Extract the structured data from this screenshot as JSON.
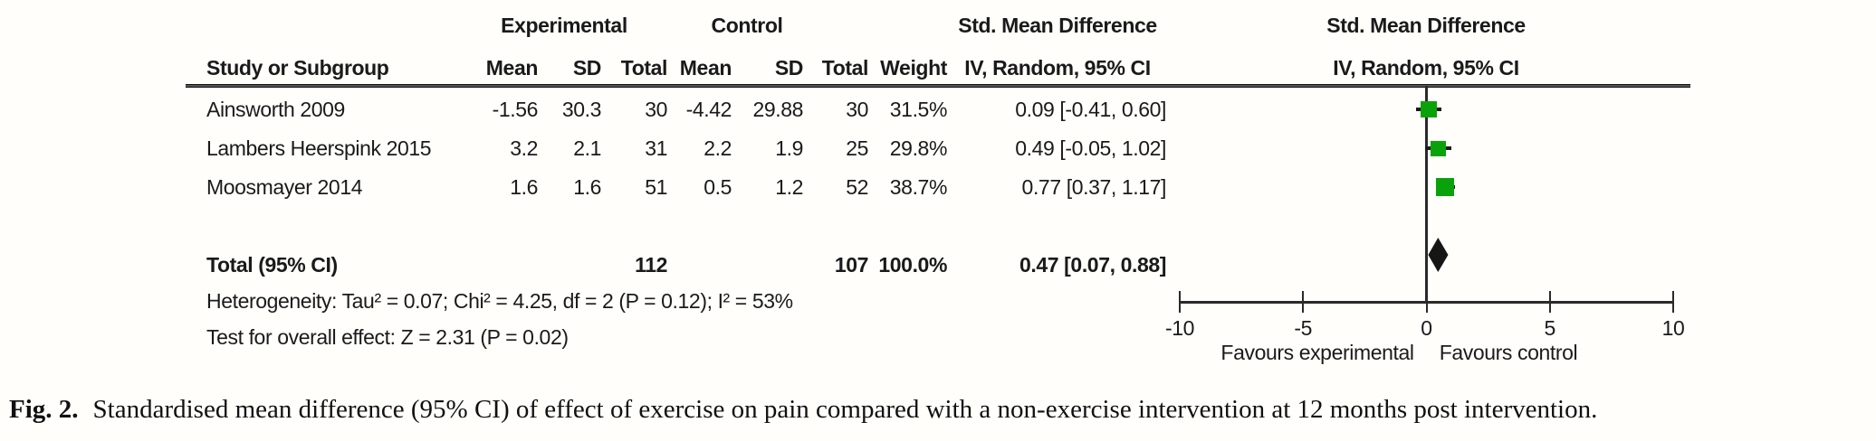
{
  "plot": {
    "group_headers": {
      "experimental": "Experimental",
      "control": "Control",
      "effect_column": "Std. Mean Difference",
      "plot_column": "Std. Mean Difference"
    },
    "column_headers": {
      "study": "Study or Subgroup",
      "exp_mean": "Mean",
      "exp_sd": "SD",
      "exp_total": "Total",
      "ctrl_mean": "Mean",
      "ctrl_sd": "SD",
      "ctrl_total": "Total",
      "weight": "Weight",
      "effect_ci": "IV, Random, 95% CI",
      "plot_ci": "IV, Random, 95% CI"
    },
    "studies": [
      {
        "name": "Ainsworth 2009",
        "exp_mean": "-1.56",
        "exp_sd": "30.3",
        "exp_total": "30",
        "ctrl_mean": "-4.42",
        "ctrl_sd": "29.88",
        "ctrl_total": "30",
        "weight": "31.5%",
        "effect": "0.09 [-0.41, 0.60]"
      },
      {
        "name": "Lambers Heerspink 2015",
        "exp_mean": "3.2",
        "exp_sd": "2.1",
        "exp_total": "31",
        "ctrl_mean": "2.2",
        "ctrl_sd": "1.9",
        "ctrl_total": "25",
        "weight": "29.8%",
        "effect": "0.49 [-0.05, 1.02]"
      },
      {
        "name": "Moosmayer 2014",
        "exp_mean": "1.6",
        "exp_sd": "1.6",
        "exp_total": "51",
        "ctrl_mean": "0.5",
        "ctrl_sd": "1.2",
        "ctrl_total": "52",
        "weight": "38.7%",
        "effect": "0.77 [0.37, 1.17]"
      }
    ],
    "total_row": {
      "label": "Total (95% CI)",
      "exp_total": "112",
      "ctrl_total": "107",
      "weight": "100.0%",
      "effect": "0.47 [0.07, 0.88]"
    },
    "heterogeneity": "Heterogeneity: Tau² = 0.07; Chi² = 4.25, df = 2 (P = 0.12); I² = 53%",
    "overall_effect": "Test for overall effect: Z = 2.31 (P = 0.02)",
    "axis": {
      "favours_left": "Favours experimental",
      "favours_right": "Favours control"
    },
    "colors": {
      "marker_green": "#0aa20a",
      "diamond_black": "#161616",
      "line_color": "#2a2a2a"
    }
  },
  "caption": {
    "label": "Fig. 2.",
    "text": "Standardised mean difference (95% CI) of effect of exercise on pain compared with a non-exercise intervention at 12 months post intervention."
  },
  "chart_data": {
    "type": "scatter",
    "subtype": "forest-plot",
    "title": "Std. Mean Difference  IV, Random, 95% CI",
    "x_axis": {
      "min": -10,
      "max": 10,
      "ticks": [
        -10,
        -5,
        0,
        5,
        10
      ],
      "label_left": "Favours experimental",
      "label_right": "Favours control"
    },
    "studies": [
      {
        "study": "Ainsworth 2009",
        "experimental": {
          "mean": -1.56,
          "sd": 30.3,
          "total": 30
        },
        "control": {
          "mean": -4.42,
          "sd": 29.88,
          "total": 30
        },
        "weight_pct": 31.5,
        "smd": 0.09,
        "ci_low": -0.41,
        "ci_high": 0.6
      },
      {
        "study": "Lambers Heerspink 2015",
        "experimental": {
          "mean": 3.2,
          "sd": 2.1,
          "total": 31
        },
        "control": {
          "mean": 2.2,
          "sd": 1.9,
          "total": 25
        },
        "weight_pct": 29.8,
        "smd": 0.49,
        "ci_low": -0.05,
        "ci_high": 1.02
      },
      {
        "study": "Moosmayer 2014",
        "experimental": {
          "mean": 1.6,
          "sd": 1.6,
          "total": 51
        },
        "control": {
          "mean": 0.5,
          "sd": 1.2,
          "total": 52
        },
        "weight_pct": 38.7,
        "smd": 0.77,
        "ci_low": 0.37,
        "ci_high": 1.17
      }
    ],
    "total": {
      "label": "Total (95% CI)",
      "experimental_total": 112,
      "control_total": 107,
      "weight_pct": 100.0,
      "smd": 0.47,
      "ci_low": 0.07,
      "ci_high": 0.88
    },
    "heterogeneity": {
      "tau2": 0.07,
      "chi2": 4.25,
      "df": 2,
      "p": 0.12,
      "i2_pct": 53
    },
    "overall_effect": {
      "z": 2.31,
      "p": 0.02
    }
  }
}
